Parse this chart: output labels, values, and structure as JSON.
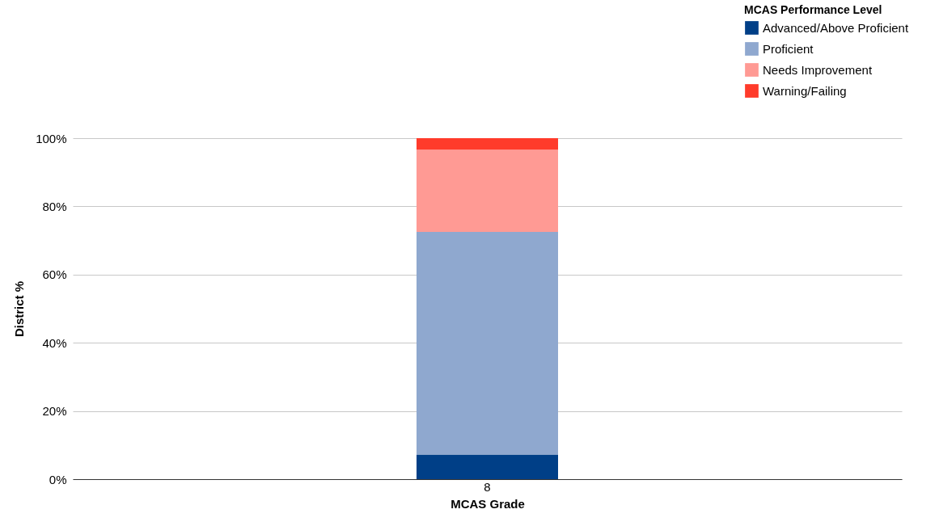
{
  "chart_data": {
    "type": "bar",
    "stacked": true,
    "xlabel": "MCAS Grade",
    "ylabel": "District %",
    "legend_title": "MCAS Performance Level",
    "legend": "top right",
    "grid": "y",
    "categories": [
      "8"
    ],
    "series": [
      {
        "name": "Advanced/Above Proficient",
        "color": "#003f87",
        "values": [
          7.2
        ]
      },
      {
        "name": "Proficient",
        "color": "#8fa8cf",
        "values": [
          65.3
        ]
      },
      {
        "name": "Needs Improvement",
        "color": "#ff9a94",
        "values": [
          24.1
        ]
      },
      {
        "name": "Warning/Failing",
        "color": "#ff3b2b",
        "values": [
          3.4
        ]
      }
    ],
    "ylim": [
      0,
      100
    ],
    "yticks": [
      {
        "value": 0,
        "label": "0%"
      },
      {
        "value": 20,
        "label": "20%"
      },
      {
        "value": 40,
        "label": "40%"
      },
      {
        "value": 60,
        "label": "60%"
      },
      {
        "value": 80,
        "label": "80%"
      },
      {
        "value": 100,
        "label": "100%"
      }
    ]
  }
}
